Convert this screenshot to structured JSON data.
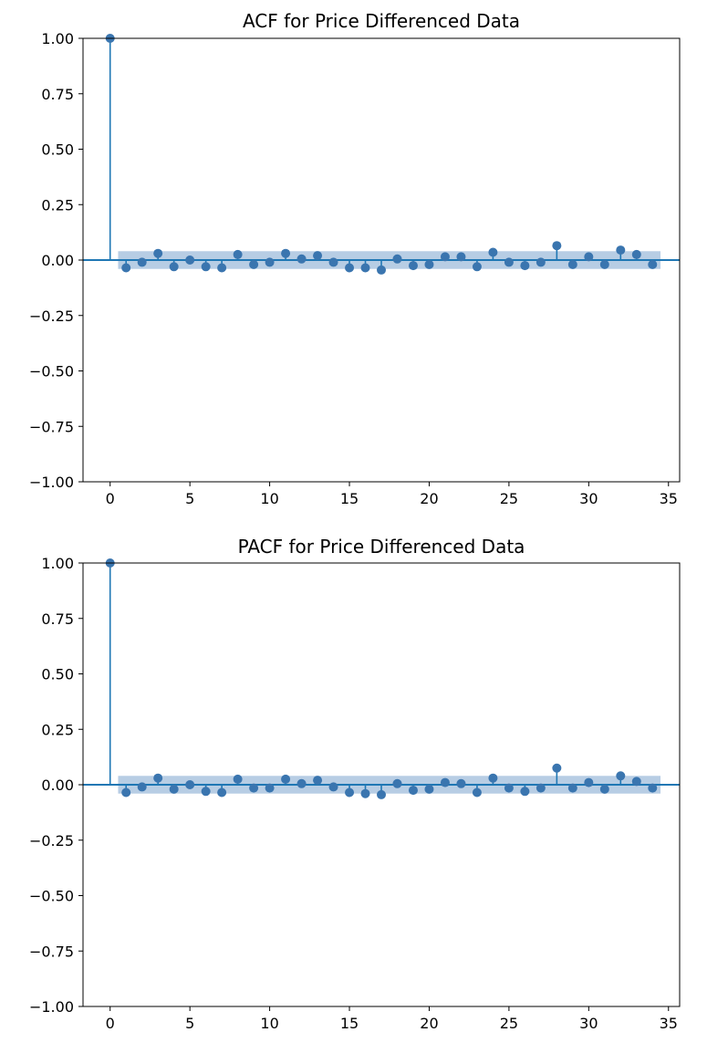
{
  "chart_data": [
    {
      "type": "stem",
      "title": "ACF for Price Differenced Data",
      "xlabel": "",
      "ylabel": "",
      "xlim": [
        -1.7,
        35.7
      ],
      "ylim": [
        -1.0,
        1.0
      ],
      "xticks": [
        "0",
        "5",
        "10",
        "15",
        "20",
        "25",
        "30",
        "35"
      ],
      "xtick_values": [
        0,
        5,
        10,
        15,
        20,
        25,
        30,
        35
      ],
      "yticks": [
        "1.00",
        "0.75",
        "0.50",
        "0.25",
        "0.00",
        "−0.25",
        "−0.50",
        "−0.75",
        "−1.00"
      ],
      "ytick_values": [
        1.0,
        0.75,
        0.5,
        0.25,
        0.0,
        -0.25,
        -0.5,
        -0.75,
        -1.0
      ],
      "confidence_band": [
        -0.04,
        0.04
      ],
      "x": [
        0,
        1,
        2,
        3,
        4,
        5,
        6,
        7,
        8,
        9,
        10,
        11,
        12,
        13,
        14,
        15,
        16,
        17,
        18,
        19,
        20,
        21,
        22,
        23,
        24,
        25,
        26,
        27,
        28,
        29,
        30,
        31,
        32,
        33,
        34
      ],
      "values": [
        1.0,
        -0.035,
        -0.01,
        0.03,
        -0.03,
        0.0,
        -0.03,
        -0.035,
        0.025,
        -0.02,
        -0.01,
        0.03,
        0.005,
        0.02,
        -0.01,
        -0.035,
        -0.035,
        -0.045,
        0.005,
        -0.025,
        -0.02,
        0.015,
        0.015,
        -0.03,
        0.035,
        -0.01,
        -0.025,
        -0.01,
        0.065,
        -0.02,
        0.015,
        -0.02,
        0.045,
        0.025,
        -0.02
      ],
      "grid": false,
      "colors": {
        "stem": "#1f77b4",
        "marker": "#3a75af",
        "band": "#b7cde4",
        "baseline": "#1f77b4"
      }
    },
    {
      "type": "stem",
      "title": "PACF for Price Differenced Data",
      "xlabel": "",
      "ylabel": "",
      "xlim": [
        -1.7,
        35.7
      ],
      "ylim": [
        -1.0,
        1.0
      ],
      "xticks": [
        "0",
        "5",
        "10",
        "15",
        "20",
        "25",
        "30",
        "35"
      ],
      "xtick_values": [
        0,
        5,
        10,
        15,
        20,
        25,
        30,
        35
      ],
      "yticks": [
        "1.00",
        "0.75",
        "0.50",
        "0.25",
        "0.00",
        "−0.25",
        "−0.50",
        "−0.75",
        "−1.00"
      ],
      "ytick_values": [
        1.0,
        0.75,
        0.5,
        0.25,
        0.0,
        -0.25,
        -0.5,
        -0.75,
        -1.0
      ],
      "confidence_band": [
        -0.04,
        0.04
      ],
      "x": [
        0,
        1,
        2,
        3,
        4,
        5,
        6,
        7,
        8,
        9,
        10,
        11,
        12,
        13,
        14,
        15,
        16,
        17,
        18,
        19,
        20,
        21,
        22,
        23,
        24,
        25,
        26,
        27,
        28,
        29,
        30,
        31,
        32,
        33,
        34
      ],
      "values": [
        1.0,
        -0.035,
        -0.01,
        0.03,
        -0.02,
        0.0,
        -0.03,
        -0.035,
        0.025,
        -0.015,
        -0.015,
        0.025,
        0.005,
        0.02,
        -0.01,
        -0.035,
        -0.04,
        -0.045,
        0.005,
        -0.025,
        -0.02,
        0.01,
        0.005,
        -0.035,
        0.03,
        -0.015,
        -0.03,
        -0.015,
        0.075,
        -0.015,
        0.01,
        -0.02,
        0.04,
        0.015,
        -0.015
      ],
      "grid": false,
      "colors": {
        "stem": "#1f77b4",
        "marker": "#3a75af",
        "band": "#b7cde4",
        "baseline": "#1f77b4"
      }
    }
  ]
}
